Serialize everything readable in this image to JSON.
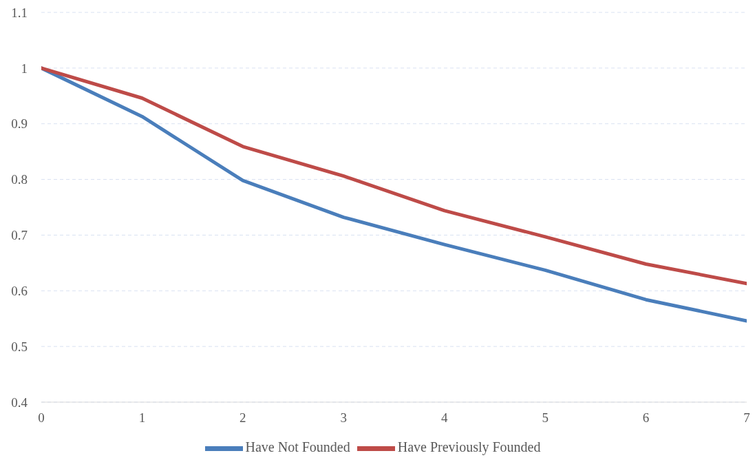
{
  "chart_data": {
    "type": "line",
    "x": [
      0,
      1,
      2,
      3,
      4,
      5,
      6,
      7
    ],
    "series": [
      {
        "name": "Have Not Founded",
        "color": "#4a7ebb",
        "values": [
          1.0,
          0.913,
          0.798,
          0.732,
          0.683,
          0.637,
          0.584,
          0.546
        ]
      },
      {
        "name": "Have Previously Founded",
        "color": "#be4b48",
        "values": [
          1.0,
          0.946,
          0.859,
          0.806,
          0.744,
          0.697,
          0.648,
          0.613
        ]
      }
    ],
    "xlim": [
      0,
      7
    ],
    "xticks": [
      0,
      1,
      2,
      3,
      4,
      5,
      6,
      7
    ],
    "ylim": [
      0.4,
      1.1
    ],
    "yticks": [
      0.4,
      0.5,
      0.6,
      0.7,
      0.8,
      0.9,
      1,
      1.1
    ],
    "grid": "y",
    "legend": "bottom",
    "marker": "none",
    "line_style": "solid"
  }
}
